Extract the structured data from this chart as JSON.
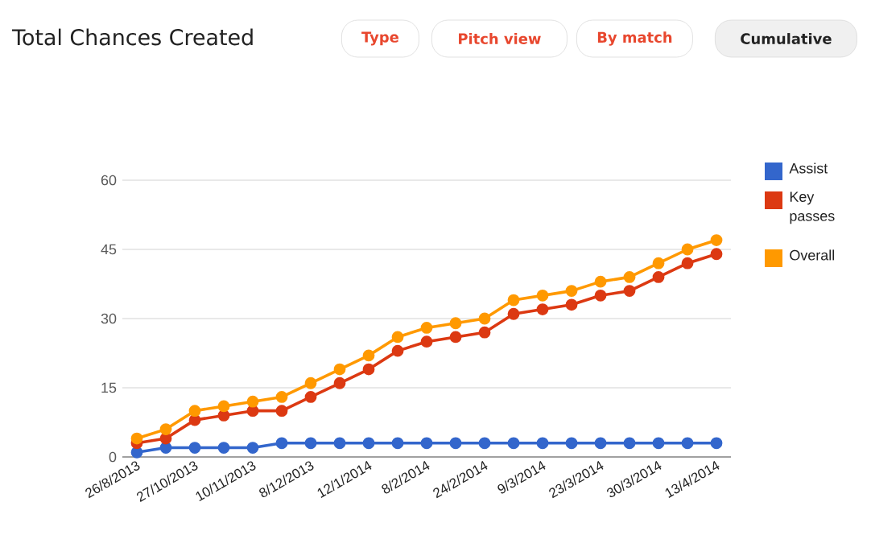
{
  "chart_data": {
    "type": "line",
    "title": "Total Chances Created",
    "annotations": [
      "Type",
      "Pitch view",
      "By match",
      "Cumulative"
    ],
    "categories": [
      "26/8/2013",
      null,
      "27/10/2013",
      null,
      "10/11/2013",
      null,
      "8/12/2013",
      null,
      "12/1/2014",
      null,
      "8/2/2014",
      null,
      "24/2/2014",
      null,
      "9/3/2014",
      null,
      "23/3/2014",
      null,
      "30/3/2014",
      null,
      "13/4/2014"
    ],
    "series": [
      {
        "name": "Assist",
        "color": "#3366cc",
        "values": [
          1,
          2,
          2,
          2,
          2,
          3,
          3,
          3,
          3,
          3,
          3,
          3,
          3,
          3,
          3,
          3,
          3,
          3,
          3,
          3,
          3
        ]
      },
      {
        "name": "Key passes",
        "color": "#dc3912",
        "values": [
          3,
          4,
          8,
          9,
          10,
          10,
          13,
          16,
          19,
          23,
          25,
          26,
          27,
          31,
          32,
          33,
          35,
          36,
          39,
          42,
          44
        ]
      },
      {
        "name": "Overall",
        "color": "#ff9900",
        "values": [
          4,
          6,
          10,
          11,
          12,
          13,
          16,
          19,
          22,
          26,
          28,
          29,
          30,
          34,
          35,
          36,
          38,
          39,
          42,
          45,
          47
        ]
      }
    ],
    "ylim": [
      0,
      60
    ],
    "yticks": [
      0,
      15,
      30,
      45,
      60
    ],
    "grid": "y",
    "legend": "right",
    "marker": "circle",
    "line_style": "solid"
  }
}
